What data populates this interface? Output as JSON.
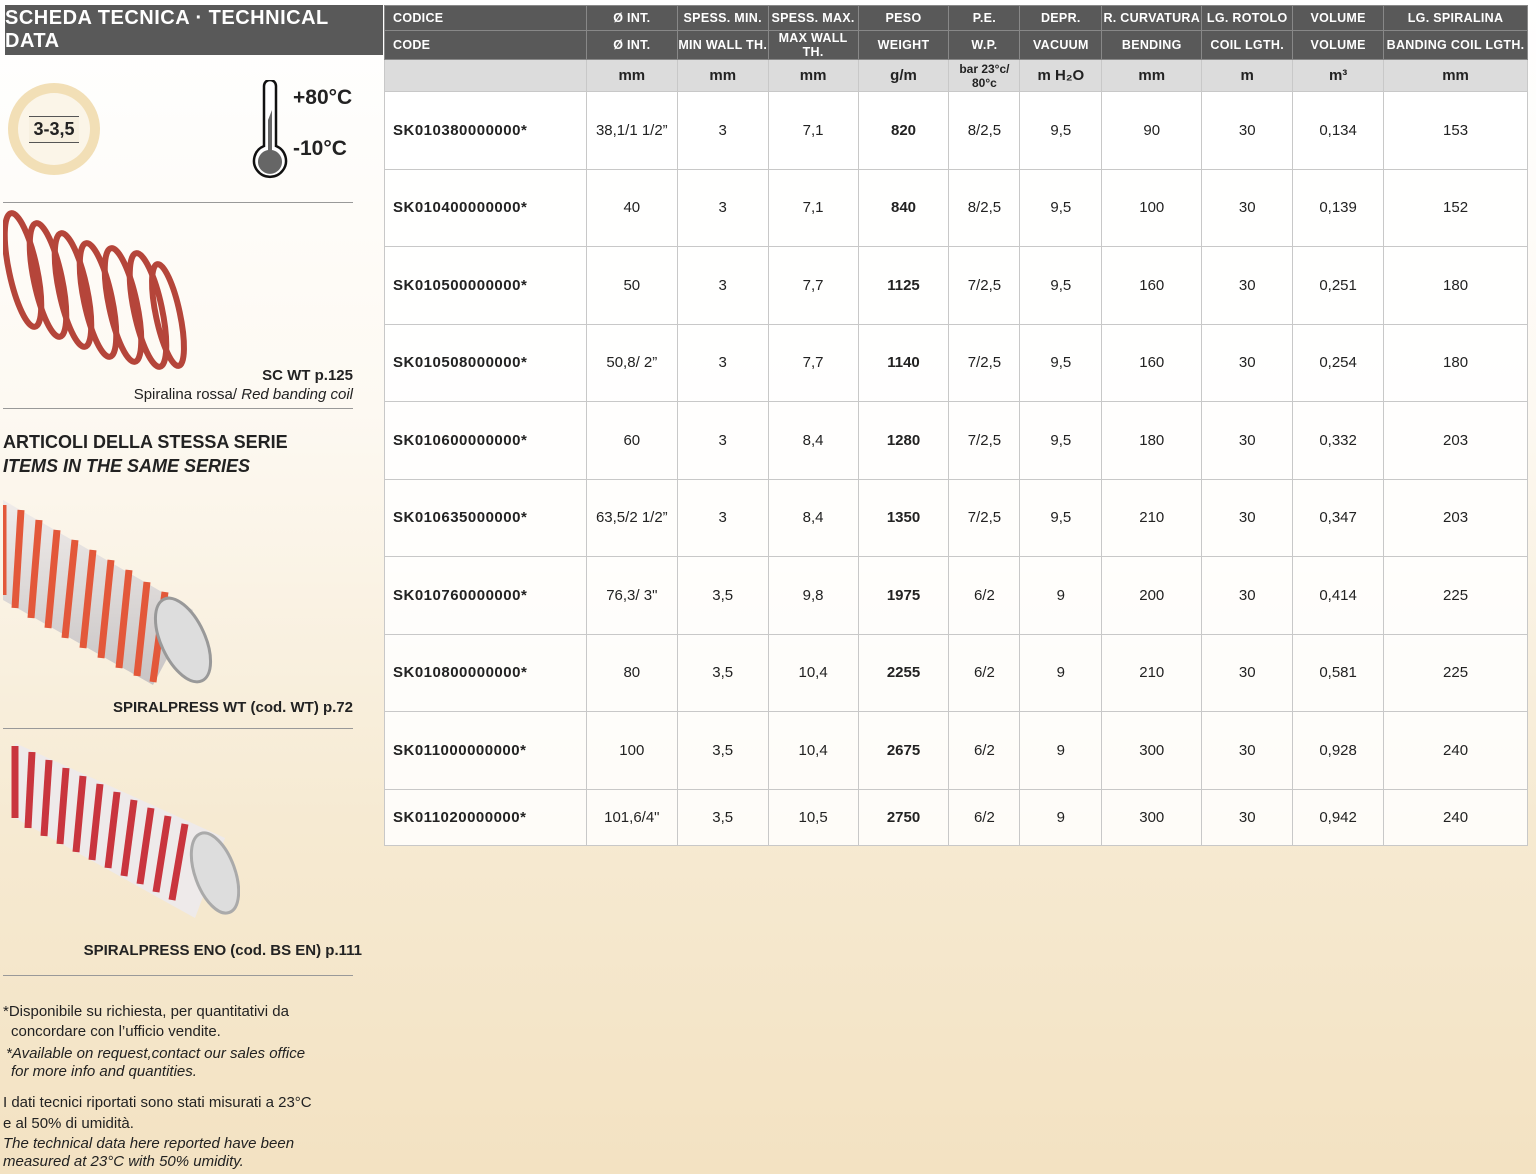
{
  "title": "SCHEDA TECNICA · TECHNICAL DATA",
  "thickness_badge": "3-3,5",
  "temp_max": "+80°C",
  "temp_min": "-10°C",
  "coil": {
    "title": "SC WT p.125",
    "subtitle_it": "Spiralina rossa/",
    "subtitle_en": "Red banding coil",
    "color": "#b5453a"
  },
  "series_heading_it": "ARTICOLI DELLA STESSA SERIE",
  "series_heading_en": "ITEMS IN THE SAME SERIES",
  "related": [
    {
      "label": "SPIRALPRESS WT (cod. WT) p.72",
      "color": "#e3583a"
    },
    {
      "label": "SPIRALPRESS ENO (cod. BS EN) p.111",
      "color": "#c9353e"
    }
  ],
  "notes": {
    "avail_it_1": "*Disponibile su richiesta, per quantitativi da",
    "avail_it_2": "concordare con l’ufficio vendite.",
    "avail_en_1": "*Available on request,contact our sales office",
    "avail_en_2": "for more info and quantities.",
    "cond_it_1": "I dati tecnici riportati sono stati misurati a 23°C",
    "cond_it_2": "e al 50% di umidità.",
    "cond_en_1": "The technical data here reported have been",
    "cond_en_2": "measured at 23°C with 50% umidity."
  },
  "table": {
    "headers_it": [
      "CODICE",
      "Ø INT.",
      "SPESS. MIN.",
      "SPESS. MAX.",
      "PESO",
      "P.E.",
      "DEPR.",
      "R. CURVATURA",
      "LG. ROTOLO",
      "VOLUME",
      "LG. SPIRALINA"
    ],
    "headers_en": [
      "CODE",
      "Ø INT.",
      "MIN WALL TH.",
      "MAX WALL TH.",
      "WEIGHT",
      "W.P.",
      "VACUUM",
      "BENDING",
      "COIL LGTH.",
      "VOLUME",
      "BANDING COIL LGTH."
    ],
    "units": [
      "",
      "mm",
      "mm",
      "mm",
      "g/m",
      "bar 23°c/ 80°c",
      "m H₂O",
      "mm",
      "m",
      "m³",
      "mm"
    ],
    "rows": [
      [
        "SK010380000000*",
        "38,1/1 1/2”",
        "3",
        "7,1",
        "820",
        "8/2,5",
        "9,5",
        "90",
        "30",
        "0,134",
        "153"
      ],
      [
        "SK010400000000*",
        "40",
        "3",
        "7,1",
        "840",
        "8/2,5",
        "9,5",
        "100",
        "30",
        "0,139",
        "152"
      ],
      [
        "SK010500000000*",
        "50",
        "3",
        "7,7",
        "1125",
        "7/2,5",
        "9,5",
        "160",
        "30",
        "0,251",
        "180"
      ],
      [
        "SK010508000000*",
        "50,8/ 2”",
        "3",
        "7,7",
        "1140",
        "7/2,5",
        "9,5",
        "160",
        "30",
        "0,254",
        "180"
      ],
      [
        "SK010600000000*",
        "60",
        "3",
        "8,4",
        "1280",
        "7/2,5",
        "9,5",
        "180",
        "30",
        "0,332",
        "203"
      ],
      [
        "SK010635000000*",
        "63,5/2 1/2”",
        "3",
        "8,4",
        "1350",
        "7/2,5",
        "9,5",
        "210",
        "30",
        "0,347",
        "203"
      ],
      [
        "SK010760000000*",
        "76,3/ 3\"",
        "3,5",
        "9,8",
        "1975",
        "6/2",
        "9",
        "200",
        "30",
        "0,414",
        "225"
      ],
      [
        "SK010800000000*",
        "80",
        "3,5",
        "10,4",
        "2255",
        "6/2",
        "9",
        "210",
        "30",
        "0,581",
        "225"
      ],
      [
        "SK011000000000*",
        "100",
        "3,5",
        "10,4",
        "2675",
        "6/2",
        "9",
        "300",
        "30",
        "0,928",
        "240"
      ],
      [
        "SK011020000000*",
        "101,6/4\"",
        "3,5",
        "10,5",
        "2750",
        "6/2",
        "9",
        "300",
        "30",
        "0,942",
        "240"
      ]
    ]
  }
}
